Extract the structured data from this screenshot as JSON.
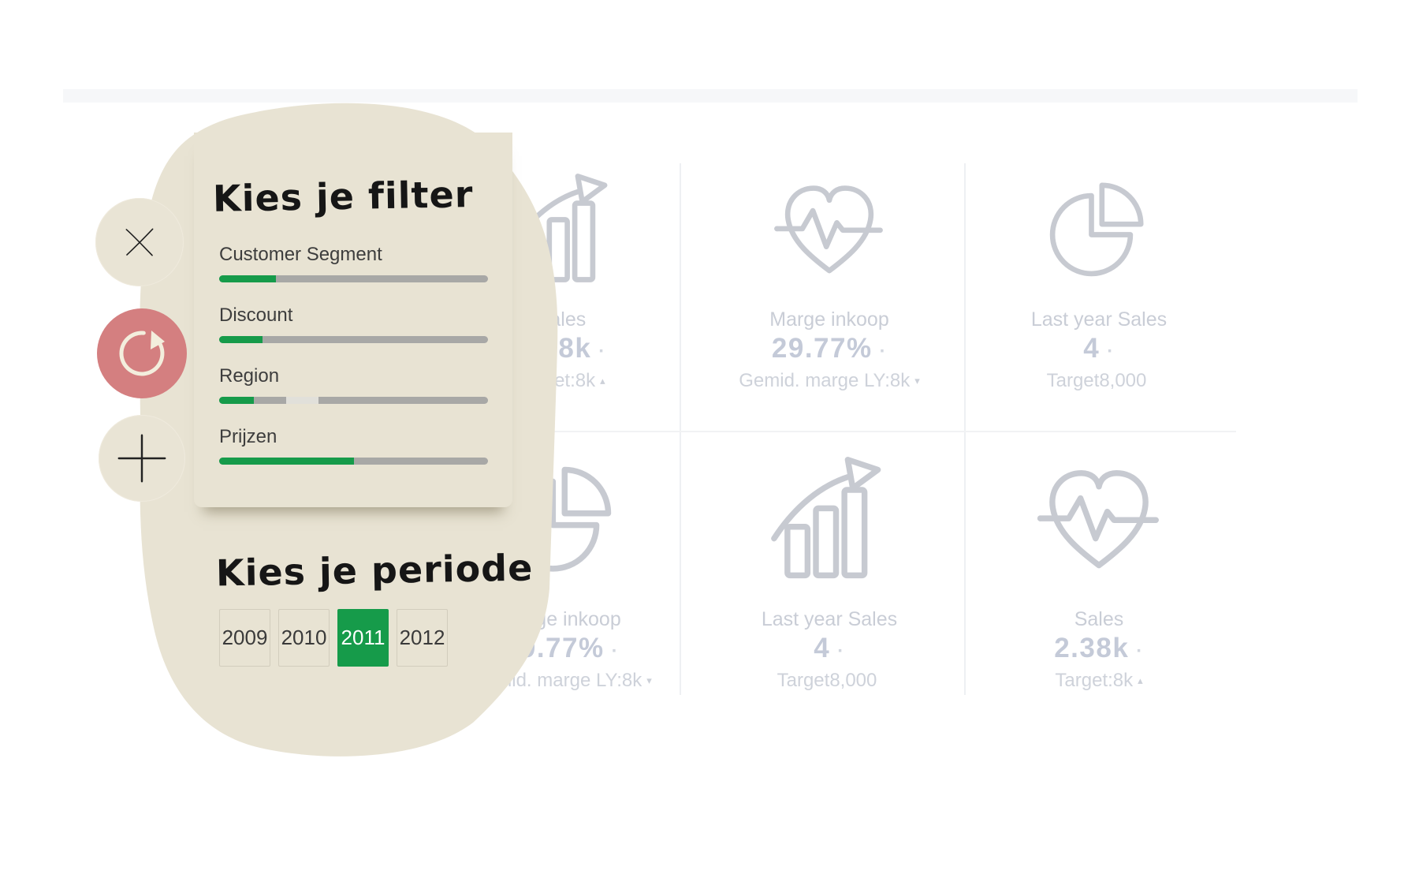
{
  "filter_panel": {
    "title": "Kies je filter",
    "close_button": "close-icon",
    "reset_button": "refresh-icon",
    "add_button": "plus-icon",
    "sliders": [
      {
        "label": "Customer Segment",
        "fill_pct": 21
      },
      {
        "label": "Discount",
        "fill_pct": 16
      },
      {
        "label": "Region",
        "fill_pct": 13,
        "highlight": {
          "from_pct": 25,
          "to_pct": 37
        }
      },
      {
        "label": "Prijzen",
        "fill_pct": 50
      }
    ],
    "period": {
      "title": "Kies je periode",
      "years": [
        {
          "label": "2009",
          "selected": false
        },
        {
          "label": "2010",
          "selected": false
        },
        {
          "label": "2011",
          "selected": true
        },
        {
          "label": "2012",
          "selected": false
        }
      ]
    }
  },
  "dashboard": {
    "cards": [
      {
        "icon": "growth-chart-icon",
        "label": "Sales",
        "value": "2.38k",
        "value_mark": "·",
        "sub": "Target:8k",
        "sub_mark": "▴"
      },
      {
        "icon": "heart-pulse-icon",
        "label": "Marge inkoop",
        "value": "29.77%",
        "value_mark": "·",
        "sub": "Gemid. marge LY:8k",
        "sub_mark": "▾"
      },
      {
        "icon": "pie-chart-icon",
        "label": "Last year Sales",
        "value": "4",
        "value_mark": "·",
        "sub": "Target8,000",
        "sub_mark": ""
      },
      {
        "icon": "pie-chart-icon",
        "label": "Marge inkoop",
        "value": "29.77%",
        "value_mark": "·",
        "sub": "Gemid. marge LY:8k",
        "sub_mark": "▾"
      },
      {
        "icon": "growth-chart-icon",
        "label": "Last year Sales",
        "value": "4",
        "value_mark": "·",
        "sub": "Target8,000",
        "sub_mark": ""
      },
      {
        "icon": "heart-pulse-icon",
        "label": "Sales",
        "value": "2.38k",
        "value_mark": "·",
        "sub": "Target:8k",
        "sub_mark": "▴"
      }
    ]
  },
  "colors": {
    "accent_green": "#169b4a",
    "reset_red": "#d47f80",
    "panel_beige": "#e8e3d3",
    "faded_text": "#c7ccd6",
    "slider_track": "#a8a8a6"
  }
}
